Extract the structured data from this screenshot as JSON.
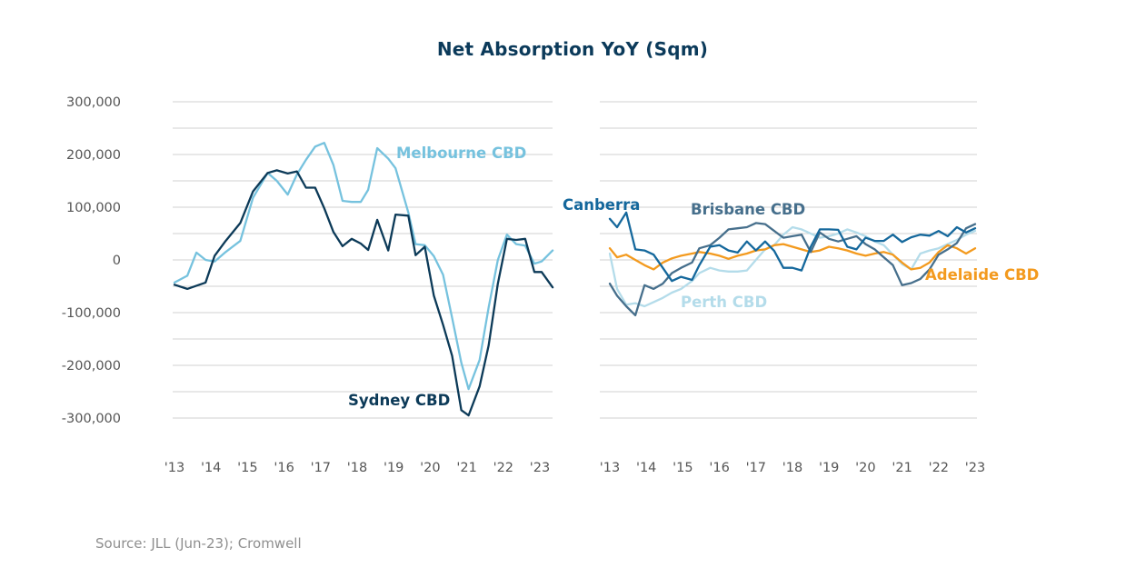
{
  "title": "Net Absorption YoY (Sqm)",
  "source": "Source: JLL (Jun-23); Cromwell",
  "colors": {
    "sydney": "#0c3a58",
    "melbourne": "#76c2de",
    "canberra": "#15689c",
    "brisbane": "#466f8c",
    "perth": "#b4dcea",
    "adelaide": "#f39a1e",
    "grid": "#d0d0d0"
  },
  "chart_data": [
    {
      "type": "line",
      "title": "Net Absorption YoY (Sqm)",
      "xlabel": "",
      "ylabel": "",
      "x_ticks": [
        "'13",
        "'14",
        "'15",
        "'16",
        "'17",
        "'18",
        "'19",
        "'20",
        "'21",
        "'22",
        "'23"
      ],
      "xlim": [
        2013,
        2023.4
      ],
      "ylim": [
        -300000,
        300000
      ],
      "y_ticks": [
        "300,000",
        "200,000",
        "100,000",
        "0",
        "-100,000",
        "-200,000",
        "-300,000"
      ],
      "grid": true,
      "series": [
        {
          "name": "Melbourne CBD",
          "color_key": "melbourne",
          "x": [
            2013.0,
            2013.35,
            2013.6,
            2013.85,
            2014.1,
            2014.4,
            2014.8,
            2015.15,
            2015.55,
            2015.8,
            2016.1,
            2016.35,
            2016.6,
            2016.85,
            2017.1,
            2017.35,
            2017.6,
            2017.85,
            2018.1,
            2018.3,
            2018.55,
            2018.85,
            2019.05,
            2019.4,
            2019.6,
            2019.85,
            2020.1,
            2020.35,
            2020.6,
            2020.85,
            2021.05,
            2021.35,
            2021.6,
            2021.85,
            2022.1,
            2022.35,
            2022.6,
            2022.85,
            2023.05,
            2023.35
          ],
          "values": [
            -43000,
            -30000,
            14000,
            0,
            -3000,
            15000,
            36000,
            118000,
            165000,
            150000,
            124000,
            162000,
            190000,
            215000,
            222000,
            180000,
            112000,
            110000,
            110000,
            133000,
            212000,
            192000,
            174000,
            90000,
            30000,
            28000,
            7000,
            -28000,
            -110000,
            -195000,
            -245000,
            -190000,
            -90000,
            0,
            48000,
            30000,
            27000,
            -7000,
            -3000,
            18000
          ]
        },
        {
          "name": "Sydney CBD",
          "color_key": "sydney",
          "x": [
            2013.0,
            2013.35,
            2013.6,
            2013.85,
            2014.1,
            2014.4,
            2014.8,
            2015.15,
            2015.55,
            2015.8,
            2016.1,
            2016.35,
            2016.6,
            2016.85,
            2017.1,
            2017.35,
            2017.6,
            2017.85,
            2018.1,
            2018.3,
            2018.55,
            2018.85,
            2019.05,
            2019.4,
            2019.6,
            2019.85,
            2020.1,
            2020.35,
            2020.6,
            2020.85,
            2021.05,
            2021.35,
            2021.6,
            2021.85,
            2022.1,
            2022.35,
            2022.6,
            2022.85,
            2023.05,
            2023.35
          ],
          "values": [
            -47000,
            -55000,
            -49000,
            -43000,
            8000,
            36000,
            70000,
            130000,
            165000,
            170000,
            164000,
            168000,
            137000,
            137000,
            98000,
            53000,
            26000,
            40000,
            31000,
            19000,
            76000,
            18000,
            86000,
            84000,
            9000,
            25000,
            -68000,
            -123000,
            -182000,
            -285000,
            -295000,
            -240000,
            -162000,
            -45000,
            40000,
            38000,
            40000,
            -23000,
            -23000,
            -52000
          ]
        },
        {
          "name": "Canberra",
          "color_key": "canberra",
          "x": [
            2013.0,
            2013.2,
            2013.45,
            2013.7,
            2013.95,
            2014.2,
            2014.45,
            2014.7,
            2014.95,
            2015.25,
            2015.45,
            2015.75,
            2016.0,
            2016.25,
            2016.5,
            2016.75,
            2017.0,
            2017.25,
            2017.5,
            2017.75,
            2018.0,
            2018.25,
            2018.5,
            2018.75,
            2019.0,
            2019.25,
            2019.5,
            2019.75,
            2020.0,
            2020.25,
            2020.5,
            2020.75,
            2021.0,
            2021.25,
            2021.5,
            2021.75,
            2022.0,
            2022.25,
            2022.5,
            2022.75,
            2023.0
          ],
          "values": [
            78000,
            62000,
            90000,
            20000,
            18000,
            10000,
            -15000,
            -40000,
            -32000,
            -38000,
            -10000,
            25000,
            28000,
            18000,
            14000,
            35000,
            18000,
            35000,
            17000,
            -15000,
            -15000,
            -20000,
            25000,
            58000,
            58000,
            57000,
            25000,
            20000,
            42000,
            36000,
            36000,
            48000,
            34000,
            43000,
            48000,
            46000,
            55000,
            45000,
            62000,
            52000,
            60000
          ]
        },
        {
          "name": "Brisbane CBD",
          "color_key": "brisbane",
          "x": [
            2013.0,
            2013.2,
            2013.45,
            2013.7,
            2013.95,
            2014.2,
            2014.45,
            2014.7,
            2014.95,
            2015.25,
            2015.45,
            2015.75,
            2016.0,
            2016.25,
            2016.5,
            2016.75,
            2017.0,
            2017.25,
            2017.5,
            2017.75,
            2018.0,
            2018.25,
            2018.5,
            2018.75,
            2019.0,
            2019.25,
            2019.5,
            2019.75,
            2020.0,
            2020.25,
            2020.5,
            2020.75,
            2021.0,
            2021.25,
            2021.5,
            2021.75,
            2022.0,
            2022.25,
            2022.5,
            2022.75,
            2023.0
          ],
          "values": [
            -45000,
            -68000,
            -88000,
            -105000,
            -48000,
            -55000,
            -45000,
            -25000,
            -15000,
            -5000,
            22000,
            28000,
            42000,
            58000,
            60000,
            62000,
            70000,
            68000,
            55000,
            42000,
            45000,
            48000,
            15000,
            52000,
            40000,
            35000,
            40000,
            45000,
            30000,
            20000,
            5000,
            -10000,
            -48000,
            -44000,
            -36000,
            -18000,
            10000,
            20000,
            32000,
            60000,
            68000
          ]
        },
        {
          "name": "Perth CBD",
          "color_key": "perth",
          "x": [
            2013.0,
            2013.2,
            2013.45,
            2013.7,
            2013.95,
            2014.2,
            2014.45,
            2014.7,
            2014.95,
            2015.25,
            2015.45,
            2015.75,
            2016.0,
            2016.25,
            2016.5,
            2016.75,
            2017.0,
            2017.25,
            2017.5,
            2017.75,
            2018.0,
            2018.25,
            2018.5,
            2018.75,
            2019.0,
            2019.25,
            2019.5,
            2019.75,
            2020.0,
            2020.25,
            2020.5,
            2020.75,
            2021.0,
            2021.25,
            2021.5,
            2021.75,
            2022.0,
            2022.25,
            2022.5,
            2022.75,
            2023.0
          ],
          "values": [
            12000,
            -55000,
            -85000,
            -82000,
            -88000,
            -80000,
            -72000,
            -62000,
            -55000,
            -40000,
            -25000,
            -15000,
            -20000,
            -22000,
            -22000,
            -20000,
            0,
            20000,
            28000,
            48000,
            62000,
            58000,
            50000,
            42000,
            45000,
            50000,
            58000,
            52000,
            45000,
            35000,
            28000,
            10000,
            -8000,
            -18000,
            12000,
            18000,
            22000,
            30000,
            38000,
            48000,
            55000
          ]
        },
        {
          "name": "Adelaide CBD",
          "color_key": "adelaide",
          "x": [
            2013.0,
            2013.2,
            2013.45,
            2013.7,
            2013.95,
            2014.2,
            2014.45,
            2014.7,
            2014.95,
            2015.25,
            2015.45,
            2015.75,
            2016.0,
            2016.25,
            2016.5,
            2016.75,
            2017.0,
            2017.25,
            2017.5,
            2017.75,
            2018.0,
            2018.25,
            2018.5,
            2018.75,
            2019.0,
            2019.25,
            2019.5,
            2019.75,
            2020.0,
            2020.25,
            2020.5,
            2020.75,
            2021.0,
            2021.25,
            2021.5,
            2021.75,
            2022.0,
            2022.25,
            2022.5,
            2022.75,
            2023.0
          ],
          "values": [
            22000,
            5000,
            10000,
            0,
            -10000,
            -18000,
            -5000,
            3000,
            8000,
            12000,
            15000,
            12000,
            8000,
            2000,
            8000,
            12000,
            18000,
            20000,
            28000,
            30000,
            25000,
            20000,
            15000,
            18000,
            25000,
            22000,
            18000,
            12000,
            8000,
            12000,
            15000,
            10000,
            -5000,
            -18000,
            -15000,
            -5000,
            15000,
            28000,
            22000,
            12000,
            22000
          ]
        }
      ],
      "annotations": [
        {
          "text": "Melbourne CBD",
          "series": "Melbourne CBD"
        },
        {
          "text": "Sydney CBD",
          "series": "Sydney CBD"
        },
        {
          "text": "Canberra",
          "series": "Canberra"
        },
        {
          "text": "Brisbane CBD",
          "series": "Brisbane CBD"
        },
        {
          "text": "Perth CBD",
          "series": "Perth CBD"
        },
        {
          "text": "Adelaide CBD",
          "series": "Adelaide CBD"
        }
      ]
    }
  ]
}
